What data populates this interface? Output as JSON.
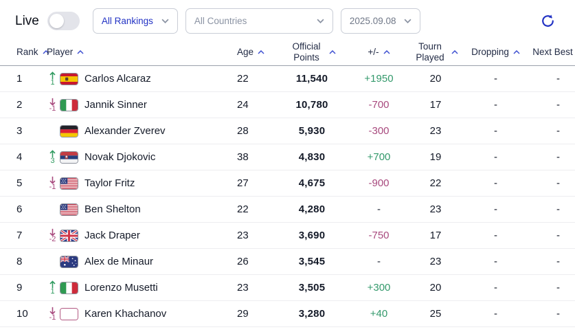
{
  "toolbar": {
    "live_label": "Live",
    "toggle": {
      "state": "off"
    },
    "rankings_select": {
      "value": "All Rankings"
    },
    "countries_select": {
      "value": "All Countries"
    },
    "date_select": {
      "value": "2025.09.08"
    }
  },
  "table": {
    "columns": [
      {
        "id": "rank",
        "label": "Rank"
      },
      {
        "id": "player",
        "label": "Player"
      },
      {
        "id": "age",
        "label": "Age"
      },
      {
        "id": "points",
        "label": "Official Points"
      },
      {
        "id": "delta",
        "label": "+/-"
      },
      {
        "id": "tourn",
        "label": "Tourn Played"
      },
      {
        "id": "dropping",
        "label": "Dropping"
      },
      {
        "id": "next_best",
        "label": "Next Best"
      }
    ],
    "rows": [
      {
        "rank": "1",
        "movement": {
          "dir": "up",
          "value": "1"
        },
        "flag": "spain",
        "player": "Carlos Alcaraz",
        "age": "22",
        "points": "11,540",
        "delta": "+1950",
        "tourn": "20",
        "dropping": "-",
        "next_best": "-"
      },
      {
        "rank": "2",
        "movement": {
          "dir": "down",
          "value": "-1"
        },
        "flag": "italy",
        "player": "Jannik Sinner",
        "age": "24",
        "points": "10,780",
        "delta": "-700",
        "tourn": "17",
        "dropping": "-",
        "next_best": "-"
      },
      {
        "rank": "3",
        "movement": null,
        "flag": "germany",
        "player": "Alexander Zverev",
        "age": "28",
        "points": "5,930",
        "delta": "-300",
        "tourn": "23",
        "dropping": "-",
        "next_best": "-"
      },
      {
        "rank": "4",
        "movement": {
          "dir": "up",
          "value": "3"
        },
        "flag": "serbia",
        "player": "Novak Djokovic",
        "age": "38",
        "points": "4,830",
        "delta": "+700",
        "tourn": "19",
        "dropping": "-",
        "next_best": "-"
      },
      {
        "rank": "5",
        "movement": {
          "dir": "down",
          "value": "-1"
        },
        "flag": "usa",
        "player": "Taylor Fritz",
        "age": "27",
        "points": "4,675",
        "delta": "-900",
        "tourn": "22",
        "dropping": "-",
        "next_best": "-"
      },
      {
        "rank": "6",
        "movement": null,
        "flag": "usa",
        "player": "Ben Shelton",
        "age": "22",
        "points": "4,280",
        "delta": "-",
        "tourn": "23",
        "dropping": "-",
        "next_best": "-"
      },
      {
        "rank": "7",
        "movement": {
          "dir": "down",
          "value": "-2"
        },
        "flag": "uk",
        "player": "Jack Draper",
        "age": "23",
        "points": "3,690",
        "delta": "-750",
        "tourn": "17",
        "dropping": "-",
        "next_best": "-"
      },
      {
        "rank": "8",
        "movement": null,
        "flag": "australia",
        "player": "Alex de Minaur",
        "age": "26",
        "points": "3,545",
        "delta": "-",
        "tourn": "23",
        "dropping": "-",
        "next_best": "-"
      },
      {
        "rank": "9",
        "movement": {
          "dir": "up",
          "value": "1"
        },
        "flag": "italy",
        "player": "Lorenzo Musetti",
        "age": "23",
        "points": "3,505",
        "delta": "+300",
        "tourn": "20",
        "dropping": "-",
        "next_best": "-"
      },
      {
        "rank": "10",
        "movement": {
          "dir": "down",
          "value": "-1"
        },
        "flag": "neutral",
        "player": "Karen Khachanov",
        "age": "29",
        "points": "3,280",
        "delta": "+40",
        "tourn": "25",
        "dropping": "-",
        "next_best": "-"
      }
    ]
  },
  "colors": {
    "accent_blue": "#2333c4",
    "positive_green": "#33996b",
    "negative_plum": "#a84a7e"
  }
}
